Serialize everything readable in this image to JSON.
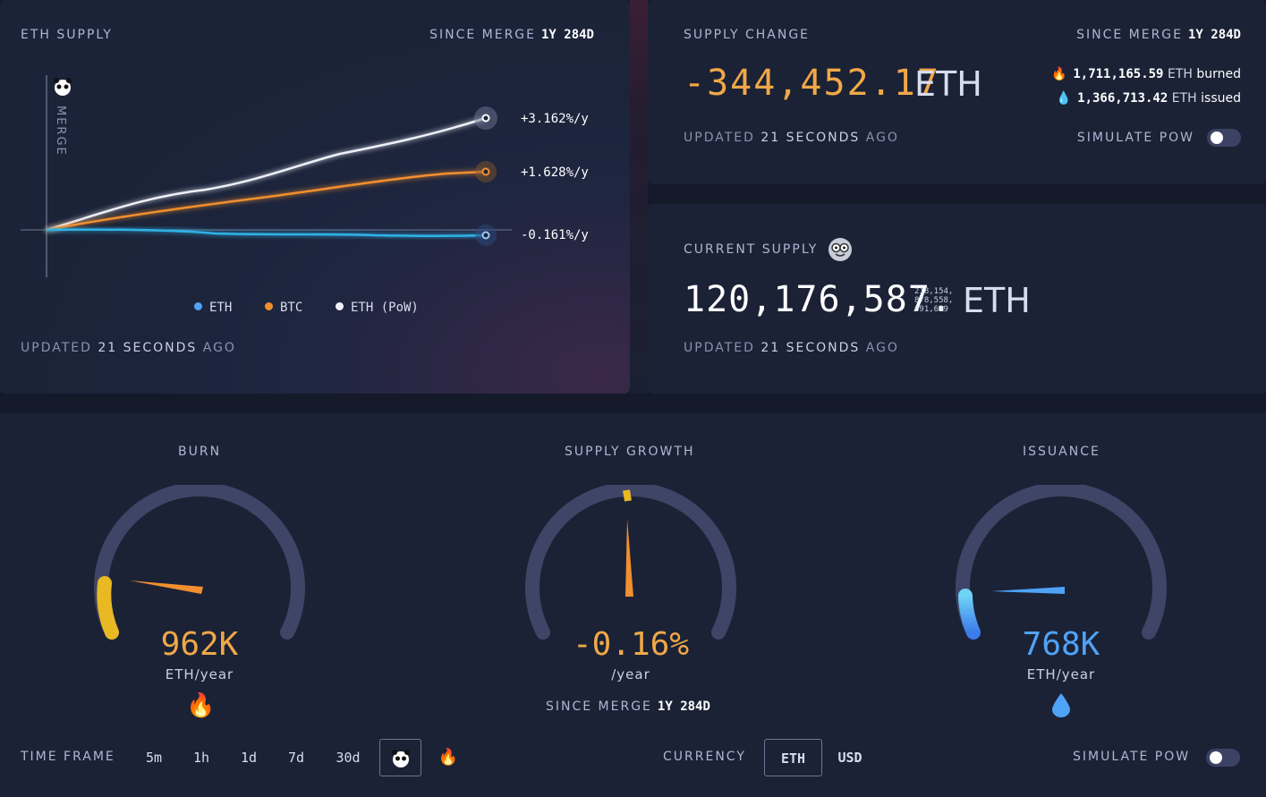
{
  "eth_supply": {
    "title": "ETH SUPPLY",
    "since_label": "SINCE MERGE",
    "since_value": "1y 284d",
    "merge_label": "MERGE",
    "series": [
      {
        "name": "ETH",
        "rate": "-0.161%/y",
        "color": "#4fa3f7"
      },
      {
        "name": "BTC",
        "rate": "+1.628%/y",
        "color": "#f28f2e"
      },
      {
        "name": "ETH (PoW)",
        "rate": "+3.162%/y",
        "color": "#eef0f8"
      }
    ],
    "updated_prefix": "UPDATED",
    "updated_value": "21 SECONDS",
    "updated_suffix": "AGO"
  },
  "supply_change": {
    "title": "SUPPLY CHANGE",
    "since_label": "SINCE MERGE",
    "since_value": "1y 284d",
    "value": "-344,452.17",
    "unit": "ETH",
    "burned_value": "1,711,165.59",
    "burned_unit": "ETH",
    "burned_label": "burned",
    "issued_value": "1,366,713.42",
    "issued_unit": "ETH",
    "issued_label": "issued",
    "updated_prefix": "UPDATED",
    "updated_value": "21 SECONDS",
    "updated_suffix": "AGO",
    "simulate_label": "SIMULATE PoW",
    "simulate_on": false
  },
  "current_supply": {
    "title": "CURRENT SUPPLY",
    "icon": "nerd-face-icon",
    "value": "120,176,587.",
    "decimals_1": "218,154,",
    "decimals_2": "878,558,",
    "decimals_3": "691,639",
    "unit": "ETH",
    "updated_prefix": "UPDATED",
    "updated_value": "21 SECONDS",
    "updated_suffix": "AGO"
  },
  "gauges": {
    "burn": {
      "title": "BURN",
      "value": "962K",
      "unit": "ETH/year",
      "icon": "fire-icon",
      "level": 0.2
    },
    "growth": {
      "title": "SUPPLY GROWTH",
      "value": "-0.16%",
      "unit": "/year",
      "since_label": "SINCE MERGE",
      "since_value": "1y 284d"
    },
    "issuance": {
      "title": "ISSUANCE",
      "value": "768K",
      "unit": "ETH/year",
      "icon": "droplet-icon",
      "level": 0.16
    }
  },
  "controls": {
    "time_frame_label": "TIME FRAME",
    "time_frames": [
      "5m",
      "1h",
      "1d",
      "7d",
      "30d"
    ],
    "selected_time_frame": "since-merge",
    "currency_label": "CURRENCY",
    "currencies": [
      "ETH",
      "USD"
    ],
    "selected_currency": "ETH",
    "simulate_label": "SIMULATE PoW",
    "simulate_on": false
  },
  "colors": {
    "orange": "#f0a847",
    "blue": "#4fa3f7",
    "yellow": "#e8b923",
    "track": "#3f4566"
  }
}
